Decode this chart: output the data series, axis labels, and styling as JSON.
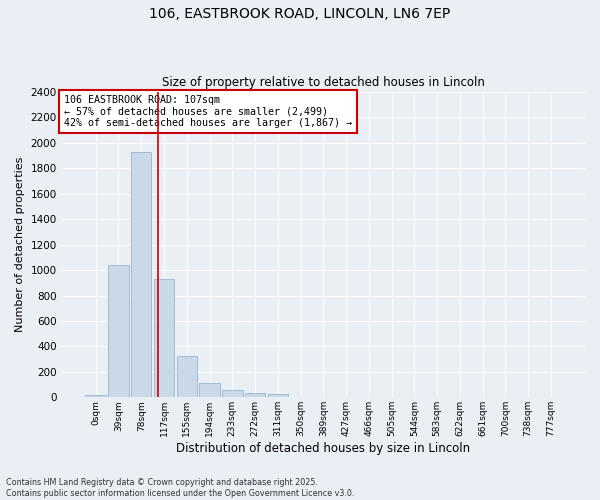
{
  "title_line1": "106, EASTBROOK ROAD, LINCOLN, LN6 7EP",
  "title_line2": "Size of property relative to detached houses in Lincoln",
  "xlabel": "Distribution of detached houses by size in Lincoln",
  "ylabel": "Number of detached properties",
  "bar_labels": [
    "0sqm",
    "39sqm",
    "78sqm",
    "117sqm",
    "155sqm",
    "194sqm",
    "233sqm",
    "272sqm",
    "311sqm",
    "350sqm",
    "389sqm",
    "427sqm",
    "466sqm",
    "505sqm",
    "544sqm",
    "583sqm",
    "622sqm",
    "661sqm",
    "700sqm",
    "738sqm",
    "777sqm"
  ],
  "bar_values": [
    20,
    1040,
    1930,
    930,
    325,
    110,
    58,
    35,
    25,
    0,
    0,
    0,
    0,
    0,
    0,
    0,
    0,
    0,
    0,
    0,
    0
  ],
  "bar_color": "#c9d9e8",
  "bar_edgecolor": "#a0bcd4",
  "ylim": [
    0,
    2400
  ],
  "yticks": [
    0,
    200,
    400,
    600,
    800,
    1000,
    1200,
    1400,
    1600,
    1800,
    2000,
    2200,
    2400
  ],
  "vline_x": 2.75,
  "vline_color": "#cc0000",
  "annotation_text": "106 EASTBROOK ROAD: 107sqm\n← 57% of detached houses are smaller (2,499)\n42% of semi-detached houses are larger (1,867) →",
  "annotation_box_color": "#cc0000",
  "background_color": "#eaeef5",
  "grid_color": "#ffffff",
  "footnote": "Contains HM Land Registry data © Crown copyright and database right 2025.\nContains public sector information licensed under the Open Government Licence v3.0."
}
